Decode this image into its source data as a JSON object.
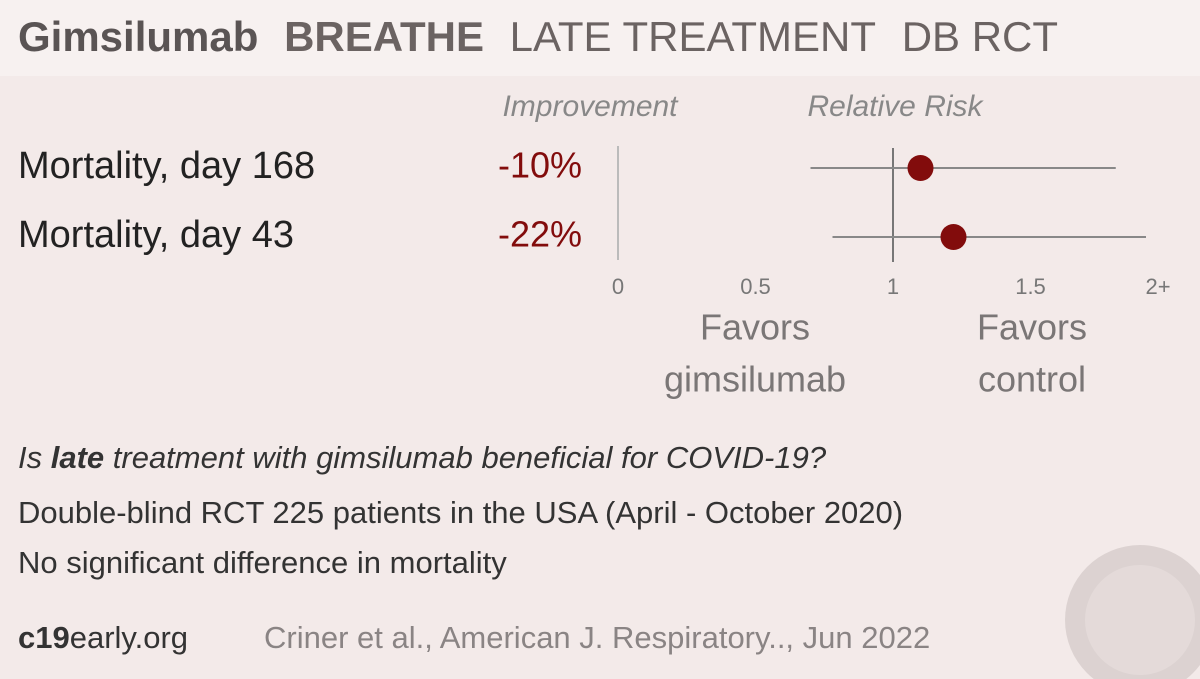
{
  "chart_data": {
    "type": "forest",
    "title": "Gimsilumab",
    "title_tags": [
      "BREATHE",
      "LATE TREATMENT",
      "DB RCT"
    ],
    "column_headers": [
      "Improvement",
      "Relative Risk"
    ],
    "categories": [
      "Mortality, day 168",
      "Mortality, day 43"
    ],
    "improvements": [
      "-10%",
      "-22%"
    ],
    "values": [
      1.1,
      1.22
    ],
    "lower": [
      0.7,
      0.78
    ],
    "upper": [
      1.81,
      1.92
    ],
    "color": "#820c0c",
    "xlim": [
      0,
      2
    ],
    "xticks": [
      0,
      0.5,
      1,
      1.5,
      {
        "value": 2,
        "label": "2+"
      }
    ],
    "favors_left": [
      "Favors",
      "gimsilumab"
    ],
    "favors_right": [
      "Favors",
      "control"
    ],
    "question": [
      "Is ",
      "late",
      " treatment with gimsilumab beneficial for COVID-19?"
    ],
    "details": [
      "Double-blind RCT 225 patients in the USA (April - October 2020)",
      "No significant difference in mortality"
    ],
    "site": [
      "c19",
      "early.org"
    ],
    "citation": "Criner et al., American J. Respiratory.., Jun 2022"
  }
}
